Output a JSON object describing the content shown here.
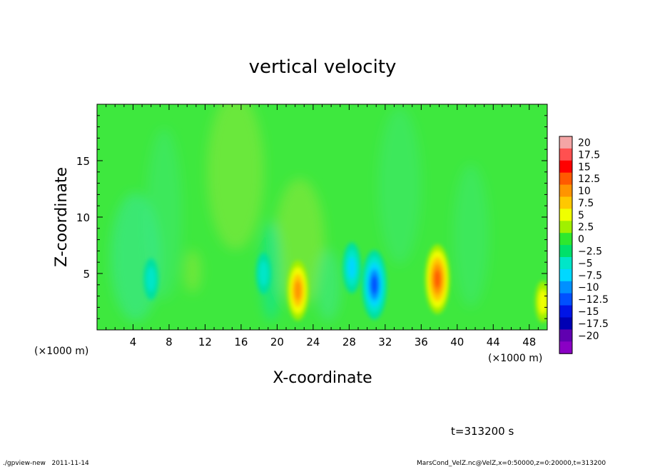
{
  "chart_data": {
    "type": "heatmap",
    "title": "vertical velocity",
    "xlabel": "X-coordinate",
    "ylabel": "Z-coordinate",
    "x_unit": "(×1000 m)",
    "xlim": [
      0,
      50
    ],
    "ylim": [
      0,
      20
    ],
    "x_ticks": [
      "4",
      "8",
      "12",
      "16",
      "20",
      "24",
      "28",
      "32",
      "36",
      "40",
      "44",
      "48"
    ],
    "x_tick_values": [
      4,
      8,
      12,
      16,
      20,
      24,
      28,
      32,
      36,
      40,
      44,
      48
    ],
    "y_ticks": [
      "5",
      "10",
      "15"
    ],
    "y_tick_values": [
      5,
      10,
      15
    ],
    "colorbar": {
      "labels": [
        "20",
        "17.5",
        "15",
        "12.5",
        "10",
        "7.5",
        "5",
        "2.5",
        "0",
        "−2.5",
        "−5",
        "−7.5",
        "−10",
        "−12.5",
        "−15",
        "−17.5",
        "−20"
      ],
      "colors": [
        "#f4a5a5",
        "#ff5050",
        "#ff0000",
        "#ff5a00",
        "#ff9400",
        "#ffc800",
        "#f0ff00",
        "#a0f000",
        "#2ee82e",
        "#00e06a",
        "#00e6c8",
        "#00d8ff",
        "#0090ff",
        "#0050ff",
        "#0014e6",
        "#0000b4",
        "#6000b0",
        "#8a00c4"
      ]
    },
    "background_value": 0,
    "features": [
      {
        "kind": "updraft",
        "x": 22.3,
        "z": 3.5,
        "peak": 10
      },
      {
        "kind": "updraft",
        "x": 37.8,
        "z": 4.5,
        "peak": 12.5
      },
      {
        "kind": "updraft",
        "x": 49.5,
        "z": 2.5,
        "peak": 5
      },
      {
        "kind": "downdraft",
        "x": 30.8,
        "z": 4.0,
        "peak": -12.5
      },
      {
        "kind": "downdraft",
        "x": 28.3,
        "z": 5.5,
        "peak": -7.5
      },
      {
        "kind": "downdraft",
        "x": 6.0,
        "z": 4.5,
        "peak": -5
      },
      {
        "kind": "downdraft",
        "x": 18.5,
        "z": 5.0,
        "peak": -5
      }
    ]
  },
  "time_label": "t=313200 s",
  "footer_left": "./gpview-new   2011-11-14",
  "footer_right": "MarsCond_VelZ.nc@VelZ,x=0:50000,z=0:20000,t=313200"
}
